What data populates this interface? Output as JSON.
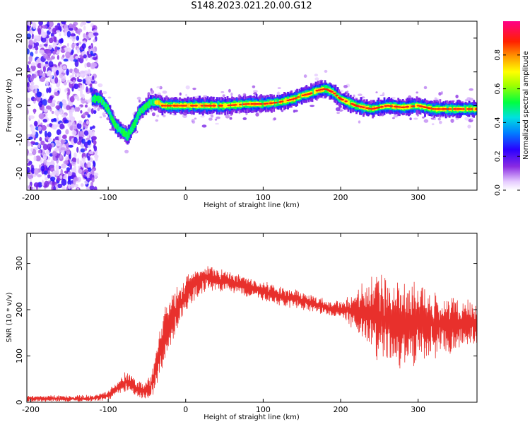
{
  "figure": {
    "title": "S148.2023.021.20.00.G12"
  },
  "chart_data": [
    {
      "type": "heatmap",
      "xlabel": "Height of straight line (km)",
      "ylabel": "Frequency (Hz)",
      "xlim": [
        -205,
        376
      ],
      "ylim": [
        -25,
        25
      ],
      "xticks": [
        -200,
        -100,
        0,
        100,
        200,
        300
      ],
      "yticks": [
        -20,
        -10,
        0,
        10,
        20
      ],
      "colorbar": {
        "label": "Normalized spectral amplitude",
        "range": [
          0,
          1
        ],
        "ticks": [
          "0.0",
          "0.2",
          "0.4",
          "0.6",
          "0.8"
        ],
        "colormap": "rainbow (white-violet-blue-cyan-green-yellow-orange-red-magenta)"
      },
      "ridge": {
        "description": "peak of the spectral amplitude (frequency vs height)",
        "x": [
          -120,
          -110,
          -100,
          -95,
          -90,
          -85,
          -80,
          -75,
          -70,
          -65,
          -60,
          -55,
          -50,
          -45,
          -40,
          -35,
          -30,
          -20,
          0,
          20,
          50,
          80,
          100,
          120,
          140,
          150,
          160,
          170,
          180,
          190,
          200,
          210,
          220,
          240,
          260,
          280,
          300,
          320,
          340,
          376
        ],
        "y": [
          2,
          2,
          -1,
          -4,
          -6,
          -7,
          -8,
          -9,
          -7,
          -5,
          -2,
          -1,
          0,
          1,
          1,
          1,
          0,
          0,
          0,
          0,
          0,
          0.5,
          0.5,
          1,
          2,
          3,
          3.5,
          4.5,
          5,
          4,
          2,
          1,
          0,
          -1,
          0,
          -0.5,
          0,
          -1,
          -1,
          -1
        ]
      },
      "noise_region": {
        "x": [
          -205,
          -115
        ],
        "y": [
          -25,
          25
        ]
      }
    },
    {
      "type": "line",
      "xlabel": "Height of straight line (km)",
      "ylabel": "SNR (10 * v/v)",
      "xlim": [
        -205,
        376
      ],
      "ylim": [
        0,
        365
      ],
      "xticks": [
        -200,
        -100,
        0,
        100,
        200,
        300
      ],
      "yticks": [
        0,
        100,
        200,
        300
      ],
      "series": [
        {
          "color": "#e8302c",
          "x": [
            -205,
            -180,
            -150,
            -120,
            -100,
            -85,
            -75,
            -65,
            -55,
            -45,
            -40,
            -35,
            -30,
            -25,
            -20,
            -10,
            0,
            10,
            20,
            30,
            40,
            50,
            60,
            70,
            80,
            90,
            100,
            110,
            120,
            130,
            140,
            150,
            160,
            170,
            180,
            190,
            200,
            210,
            220,
            230,
            240,
            250,
            260,
            270,
            280,
            290,
            300,
            310,
            320,
            330,
            340,
            350,
            360,
            376
          ],
          "y": [
            8,
            8,
            8,
            8,
            15,
            35,
            45,
            30,
            25,
            35,
            55,
            100,
            130,
            160,
            175,
            205,
            235,
            250,
            265,
            270,
            265,
            262,
            258,
            255,
            248,
            245,
            240,
            235,
            230,
            225,
            225,
            220,
            215,
            210,
            205,
            200,
            200,
            200,
            195,
            190,
            185,
            180,
            175,
            175,
            170,
            170,
            170,
            170,
            170,
            170,
            165,
            168,
            170,
            170
          ],
          "spread": [
            6,
            6,
            6,
            6,
            8,
            15,
            20,
            15,
            15,
            20,
            30,
            45,
            50,
            55,
            50,
            40,
            35,
            28,
            25,
            22,
            20,
            20,
            18,
            18,
            18,
            18,
            18,
            18,
            18,
            18,
            18,
            18,
            15,
            15,
            15,
            15,
            15,
            25,
            40,
            55,
            70,
            80,
            85,
            85,
            85,
            80,
            75,
            70,
            65,
            60,
            55,
            50,
            45,
            40
          ]
        }
      ]
    }
  ]
}
